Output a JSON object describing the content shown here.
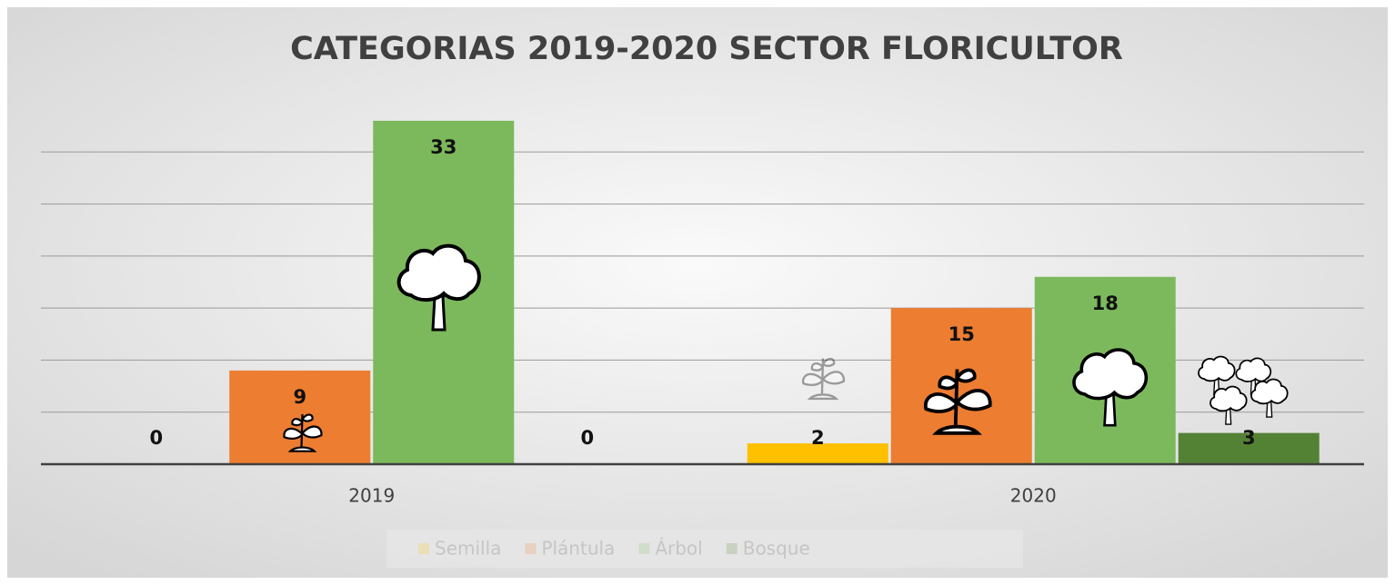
{
  "chart_data": {
    "type": "bar",
    "title": "CATEGORIAS 2019-2020 SECTOR FLORICULTOR",
    "categories": [
      "2019",
      "2020"
    ],
    "series": [
      {
        "name": "Semilla",
        "color": "#ffc000",
        "values": [
          0,
          2
        ]
      },
      {
        "name": "Plántula",
        "color": "#ed7d31",
        "values": [
          9,
          15
        ]
      },
      {
        "name": "Árbol",
        "color": "#7cb95c",
        "values": [
          33,
          18
        ]
      },
      {
        "name": "Bosque",
        "color": "#548235",
        "values": [
          0,
          3
        ]
      }
    ],
    "ylim": [
      0,
      35
    ],
    "yticks": [
      0,
      5,
      10,
      15,
      20,
      25,
      30
    ],
    "grid": true,
    "legend": "bottom"
  }
}
